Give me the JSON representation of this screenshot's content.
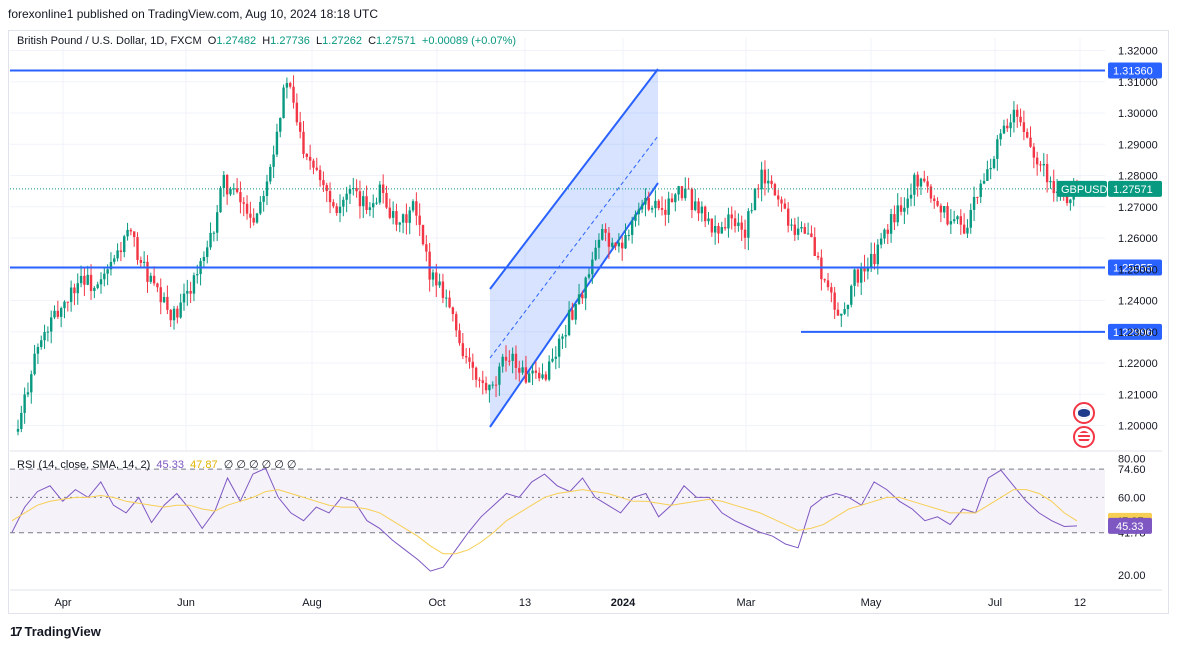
{
  "publisher_line": "forexonline1 published on TradingView.com, Aug 10, 2024 18:18 UTC",
  "legend": {
    "symbol": "British Pound / U.S. Dollar, 1D, FXCM",
    "o_label": "O",
    "o": "1.27482",
    "h_label": "H",
    "h": "1.27736",
    "l_label": "L",
    "l": "1.27262",
    "c_label": "C",
    "c": "1.27571",
    "change": "+0.00089 (+0.07%)"
  },
  "rsi_legend": {
    "label": "RSI (14, close, SMA, 14, 2)",
    "rsi_value": "45.33",
    "sma_value": "47.87",
    "extras": "∅ ∅ ∅ ∅ ∅ ∅"
  },
  "brand": "TradingView",
  "colors": {
    "up": "#089981",
    "down": "#f23645",
    "level_line": "#2962ff",
    "channel_fill": "#2962ff",
    "rsi": "#7e57c2",
    "rsi_ma": "#f7cf54"
  },
  "chart_data": [
    {
      "type": "candlestick",
      "symbol": "GBPUSD",
      "timeframe": "1D",
      "price_axis_ticks": [
        "1.32000",
        "1.31000",
        "1.30000",
        "1.29000",
        "1.28000",
        "1.27000",
        "1.26000",
        "1.25000",
        "1.24000",
        "1.23000",
        "1.22000",
        "1.21000",
        "1.20000"
      ],
      "price_axis_values": [
        1.32,
        1.31,
        1.3,
        1.29,
        1.28,
        1.27,
        1.26,
        1.25,
        1.24,
        1.23,
        1.22,
        1.21,
        1.2
      ],
      "ylim": [
        1.192,
        1.325
      ],
      "time_axis_labels": [
        "Apr",
        "Jun",
        "Aug",
        "Oct",
        "13",
        "2024",
        "Mar",
        "May",
        "Jul",
        "12"
      ],
      "current_price_label": "GBPUSD",
      "current_price": "1.27571",
      "horizontal_levels": [
        {
          "label": "1.31360",
          "value": 1.3136
        },
        {
          "label": "1.25055",
          "value": 1.25055
        },
        {
          "label": "1.22996",
          "value": 1.22996
        }
      ],
      "approx_close_path": [
        {
          "x": "Mar 2023",
          "y": 1.198
        },
        {
          "x": "Mar 2023",
          "y": 1.222
        },
        {
          "x": "Mar 2023",
          "y": 1.232
        },
        {
          "x": "Apr",
          "y": 1.24
        },
        {
          "x": "Apr",
          "y": 1.248
        },
        {
          "x": "Apr",
          "y": 1.243
        },
        {
          "x": "May",
          "y": 1.252
        },
        {
          "x": "May",
          "y": 1.262
        },
        {
          "x": "May",
          "y": 1.25
        },
        {
          "x": "May",
          "y": 1.24
        },
        {
          "x": "May",
          "y": 1.234
        },
        {
          "x": "Jun",
          "y": 1.246
        },
        {
          "x": "Jun",
          "y": 1.255
        },
        {
          "x": "Jun",
          "y": 1.278
        },
        {
          "x": "Jun",
          "y": 1.272
        },
        {
          "x": "Jun",
          "y": 1.266
        },
        {
          "x": "Jul",
          "y": 1.285
        },
        {
          "x": "Jul",
          "y": 1.311
        },
        {
          "x": "Jul",
          "y": 1.29
        },
        {
          "x": "Jul",
          "y": 1.282
        },
        {
          "x": "Aug",
          "y": 1.27
        },
        {
          "x": "Aug",
          "y": 1.274
        },
        {
          "x": "Aug",
          "y": 1.27
        },
        {
          "x": "Aug",
          "y": 1.276
        },
        {
          "x": "Sep",
          "y": 1.262
        },
        {
          "x": "Sep",
          "y": 1.27
        },
        {
          "x": "Sep",
          "y": 1.25
        },
        {
          "x": "Sep",
          "y": 1.243
        },
        {
          "x": "Sep",
          "y": 1.226
        },
        {
          "x": "Oct",
          "y": 1.214
        },
        {
          "x": "Oct",
          "y": 1.21
        },
        {
          "x": "Oct",
          "y": 1.224
        },
        {
          "x": "Oct",
          "y": 1.216
        },
        {
          "x": "Oct",
          "y": 1.214
        },
        {
          "x": "Nov",
          "y": 1.223
        },
        {
          "x": "Nov",
          "y": 1.236
        },
        {
          "x": "Nov 13",
          "y": 1.246
        },
        {
          "x": "Nov",
          "y": 1.262
        },
        {
          "x": "Dec",
          "y": 1.256
        },
        {
          "x": "Dec",
          "y": 1.268
        },
        {
          "x": "Dec",
          "y": 1.272
        },
        {
          "x": "2024",
          "y": 1.27
        },
        {
          "x": "Jan",
          "y": 1.275
        },
        {
          "x": "Jan",
          "y": 1.27
        },
        {
          "x": "Feb",
          "y": 1.262
        },
        {
          "x": "Feb",
          "y": 1.266
        },
        {
          "x": "Feb",
          "y": 1.262
        },
        {
          "x": "Mar",
          "y": 1.28
        },
        {
          "x": "Mar",
          "y": 1.274
        },
        {
          "x": "Mar",
          "y": 1.264
        },
        {
          "x": "Mar",
          "y": 1.262
        },
        {
          "x": "Apr",
          "y": 1.246
        },
        {
          "x": "Apr",
          "y": 1.234
        },
        {
          "x": "Apr",
          "y": 1.248
        },
        {
          "x": "May",
          "y": 1.252
        },
        {
          "x": "May",
          "y": 1.263
        },
        {
          "x": "May",
          "y": 1.272
        },
        {
          "x": "Jun",
          "y": 1.28
        },
        {
          "x": "Jun",
          "y": 1.272
        },
        {
          "x": "Jun",
          "y": 1.266
        },
        {
          "x": "Jun",
          "y": 1.264
        },
        {
          "x": "Jul",
          "y": 1.277
        },
        {
          "x": "Jul",
          "y": 1.29
        },
        {
          "x": "Jul",
          "y": 1.299
        },
        {
          "x": "Jul",
          "y": 1.291
        },
        {
          "x": "Aug",
          "y": 1.281
        },
        {
          "x": "Aug",
          "y": 1.272
        },
        {
          "x": "Aug 12",
          "y": 1.2757
        }
      ]
    },
    {
      "type": "line",
      "name": "RSI (14, close, SMA, 14, 2)",
      "y_axis_ticks": [
        "80.00",
        "60.00",
        "20.00"
      ],
      "y_axis_values": [
        80,
        60,
        20
      ],
      "ylim": [
        15,
        82
      ],
      "band_labels": [
        "74.60",
        "41.78"
      ],
      "band_values": [
        74.6,
        41.78
      ],
      "mid_value": 60,
      "rsi_label": "45.33",
      "sma_label": "47.87",
      "series": [
        {
          "name": "RSI",
          "values": [
            42,
            55,
            63,
            66,
            58,
            64,
            60,
            68,
            56,
            52,
            60,
            47,
            56,
            62,
            54,
            44,
            53,
            70,
            58,
            72,
            75,
            60,
            52,
            48,
            55,
            52,
            60,
            58,
            48,
            44,
            38,
            33,
            28,
            22,
            24,
            33,
            42,
            50,
            56,
            62,
            60,
            68,
            72,
            66,
            63,
            70,
            60,
            56,
            52,
            60,
            62,
            50,
            56,
            66,
            60,
            60,
            52,
            48,
            45,
            42,
            40,
            36,
            34,
            55,
            60,
            62,
            60,
            56,
            68,
            64,
            58,
            54,
            48,
            50,
            46,
            54,
            52,
            70,
            74,
            66,
            58,
            52,
            48,
            45,
            45.33
          ]
        },
        {
          "name": "SMA",
          "values": [
            48,
            52,
            56,
            58,
            59,
            60,
            60,
            61,
            60,
            58,
            57,
            56,
            55,
            56,
            56,
            54,
            53,
            56,
            58,
            60,
            63,
            64,
            62,
            60,
            58,
            56,
            55,
            55,
            54,
            52,
            48,
            44,
            40,
            35,
            31,
            31,
            33,
            37,
            42,
            48,
            52,
            56,
            60,
            62,
            63,
            64,
            63,
            62,
            60,
            58,
            58,
            57,
            56,
            57,
            58,
            59,
            58,
            56,
            54,
            52,
            49,
            46,
            43,
            44,
            46,
            50,
            54,
            56,
            58,
            60,
            60,
            58,
            56,
            54,
            52,
            52,
            52,
            56,
            60,
            64,
            64,
            62,
            58,
            52,
            47.87
          ]
        }
      ]
    }
  ]
}
